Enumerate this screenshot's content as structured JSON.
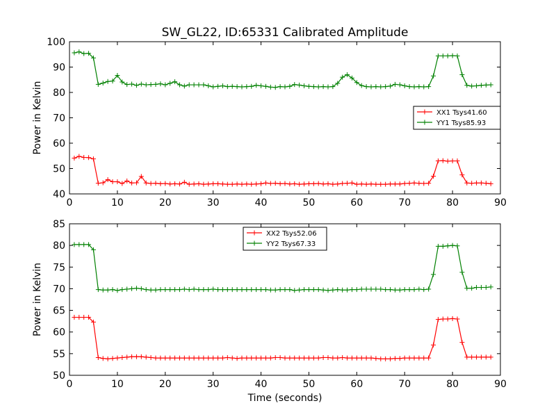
{
  "title": "SW_GL22, ID:65331 Calibrated Amplitude",
  "chart_data": [
    {
      "type": "line",
      "ylabel": "Power in Kelvin",
      "xlabel": "",
      "xlim": [
        0,
        90
      ],
      "ylim": [
        40,
        100
      ],
      "xticks": [
        "0",
        "10",
        "20",
        "30",
        "40",
        "50",
        "60",
        "70",
        "80",
        "90"
      ],
      "yticks": [
        "40",
        "50",
        "60",
        "70",
        "80",
        "90",
        "100"
      ],
      "grid": false,
      "legend_position": "center-right",
      "x": [
        1,
        2,
        3,
        4,
        5,
        6,
        7,
        8,
        9,
        10,
        11,
        12,
        13,
        14,
        15,
        16,
        17,
        18,
        19,
        20,
        21,
        22,
        23,
        24,
        25,
        26,
        27,
        28,
        29,
        30,
        31,
        32,
        33,
        34,
        35,
        36,
        37,
        38,
        39,
        40,
        41,
        42,
        43,
        44,
        45,
        46,
        47,
        48,
        49,
        50,
        51,
        52,
        53,
        54,
        55,
        56,
        57,
        58,
        59,
        60,
        61,
        62,
        63,
        64,
        65,
        66,
        67,
        68,
        69,
        70,
        71,
        72,
        73,
        74,
        75,
        76,
        77,
        78,
        79,
        80,
        81,
        82,
        83,
        84,
        85,
        86,
        87,
        88
      ],
      "series": [
        {
          "name": "XX1 Tsys41.60",
          "color": "#ff0000",
          "values": [
            54.1,
            54.8,
            54.4,
            54.3,
            53.8,
            44.2,
            44.4,
            45.6,
            44.8,
            44.8,
            44.1,
            45.1,
            44.3,
            44.4,
            46.9,
            44.3,
            44.1,
            44.2,
            44.0,
            44.1,
            43.9,
            44.0,
            43.9,
            44.6,
            43.8,
            43.9,
            44.0,
            43.8,
            43.9,
            44.0,
            44.0,
            43.9,
            43.8,
            43.8,
            43.9,
            43.8,
            43.9,
            43.8,
            43.9,
            44.0,
            44.3,
            44.1,
            44.2,
            44.0,
            44.1,
            43.9,
            44.0,
            43.8,
            43.9,
            44.0,
            44.0,
            44.1,
            43.9,
            44.0,
            43.8,
            43.9,
            44.1,
            44.2,
            44.3,
            43.8,
            43.9,
            43.8,
            43.9,
            43.8,
            43.8,
            43.8,
            43.9,
            43.9,
            43.9,
            44.1,
            44.2,
            44.3,
            44.2,
            44.1,
            44.2,
            47.0,
            53.0,
            53.1,
            52.9,
            53.0,
            53.0,
            47.5,
            44.3,
            44.2,
            44.3,
            44.3,
            44.2,
            44.0
          ]
        },
        {
          "name": "YY1 Tsys85.93",
          "color": "#008000",
          "values": [
            95.6,
            96.0,
            95.3,
            95.4,
            93.6,
            83.2,
            83.7,
            84.3,
            84.5,
            86.7,
            84.1,
            83.1,
            83.3,
            82.8,
            83.3,
            83.0,
            83.1,
            83.2,
            83.4,
            83.0,
            83.6,
            84.2,
            83.0,
            82.5,
            83.0,
            83.0,
            83.0,
            83.0,
            82.6,
            82.2,
            82.4,
            82.6,
            82.3,
            82.4,
            82.3,
            82.2,
            82.3,
            82.4,
            82.8,
            82.6,
            82.4,
            82.1,
            82.0,
            82.3,
            82.2,
            82.4,
            83.1,
            82.9,
            82.6,
            82.4,
            82.3,
            82.2,
            82.3,
            82.2,
            82.3,
            83.6,
            86.0,
            87.0,
            85.7,
            83.9,
            82.7,
            82.3,
            82.2,
            82.3,
            82.2,
            82.3,
            82.5,
            83.2,
            83.0,
            82.6,
            82.3,
            82.2,
            82.3,
            82.2,
            82.3,
            86.5,
            94.4,
            94.4,
            94.4,
            94.5,
            94.4,
            87.0,
            82.8,
            82.5,
            82.6,
            82.8,
            82.9,
            83.0
          ]
        }
      ]
    },
    {
      "type": "line",
      "ylabel": "Power in Kelvin",
      "xlabel": "Time (seconds)",
      "xlim": [
        0,
        90
      ],
      "ylim": [
        50,
        85
      ],
      "xticks": [
        "0",
        "10",
        "20",
        "30",
        "40",
        "50",
        "60",
        "70",
        "80",
        "90"
      ],
      "yticks": [
        "50",
        "55",
        "60",
        "65",
        "70",
        "75",
        "80",
        "85"
      ],
      "grid": false,
      "legend_position": "upper-center",
      "x": [
        1,
        2,
        3,
        4,
        5,
        6,
        7,
        8,
        9,
        10,
        11,
        12,
        13,
        14,
        15,
        16,
        17,
        18,
        19,
        20,
        21,
        22,
        23,
        24,
        25,
        26,
        27,
        28,
        29,
        30,
        31,
        32,
        33,
        34,
        35,
        36,
        37,
        38,
        39,
        40,
        41,
        42,
        43,
        44,
        45,
        46,
        47,
        48,
        49,
        50,
        51,
        52,
        53,
        54,
        55,
        56,
        57,
        58,
        59,
        60,
        61,
        62,
        63,
        64,
        65,
        66,
        67,
        68,
        69,
        70,
        71,
        72,
        73,
        74,
        75,
        76,
        77,
        78,
        79,
        80,
        81,
        82,
        83,
        84,
        85,
        86,
        87,
        88
      ],
      "series": [
        {
          "name": "XX2 Tsys52.06",
          "color": "#ff0000",
          "values": [
            63.4,
            63.4,
            63.4,
            63.4,
            62.3,
            54.1,
            53.9,
            53.8,
            53.9,
            54.0,
            54.1,
            54.2,
            54.3,
            54.3,
            54.3,
            54.2,
            54.1,
            54.0,
            54.0,
            54.0,
            54.0,
            54.0,
            54.0,
            54.0,
            54.0,
            54.0,
            54.0,
            54.0,
            54.0,
            54.0,
            54.0,
            54.0,
            54.1,
            54.0,
            53.9,
            54.0,
            54.0,
            54.0,
            54.0,
            54.0,
            54.0,
            54.0,
            54.1,
            54.1,
            54.0,
            54.0,
            54.0,
            54.0,
            54.0,
            54.0,
            54.0,
            54.0,
            54.1,
            54.1,
            54.0,
            54.0,
            54.1,
            54.0,
            54.0,
            54.0,
            54.0,
            54.0,
            54.0,
            53.9,
            53.8,
            53.8,
            53.8,
            53.9,
            53.9,
            54.0,
            54.0,
            54.0,
            54.0,
            54.0,
            54.0,
            57.0,
            62.9,
            63.0,
            63.0,
            63.1,
            63.0,
            57.6,
            54.2,
            54.2,
            54.2,
            54.2,
            54.2,
            54.2
          ]
        },
        {
          "name": "YY2 Tsys67.33",
          "color": "#008000",
          "values": [
            80.2,
            80.2,
            80.2,
            80.2,
            79.0,
            69.8,
            69.7,
            69.7,
            69.8,
            69.6,
            69.8,
            69.9,
            70.0,
            70.1,
            70.0,
            69.8,
            69.7,
            69.7,
            69.8,
            69.8,
            69.8,
            69.8,
            69.8,
            69.9,
            69.8,
            69.9,
            69.8,
            69.8,
            69.8,
            69.9,
            69.8,
            69.8,
            69.8,
            69.8,
            69.8,
            69.8,
            69.8,
            69.8,
            69.8,
            69.8,
            69.8,
            69.7,
            69.7,
            69.8,
            69.8,
            69.8,
            69.6,
            69.7,
            69.8,
            69.8,
            69.8,
            69.8,
            69.7,
            69.6,
            69.7,
            69.8,
            69.7,
            69.7,
            69.8,
            69.8,
            69.9,
            69.9,
            69.9,
            69.9,
            69.9,
            69.8,
            69.8,
            69.7,
            69.7,
            69.8,
            69.8,
            69.8,
            69.9,
            69.8,
            69.9,
            73.3,
            79.8,
            79.8,
            79.9,
            80.0,
            79.9,
            73.8,
            70.1,
            70.1,
            70.3,
            70.3,
            70.3,
            70.4
          ]
        }
      ]
    }
  ]
}
